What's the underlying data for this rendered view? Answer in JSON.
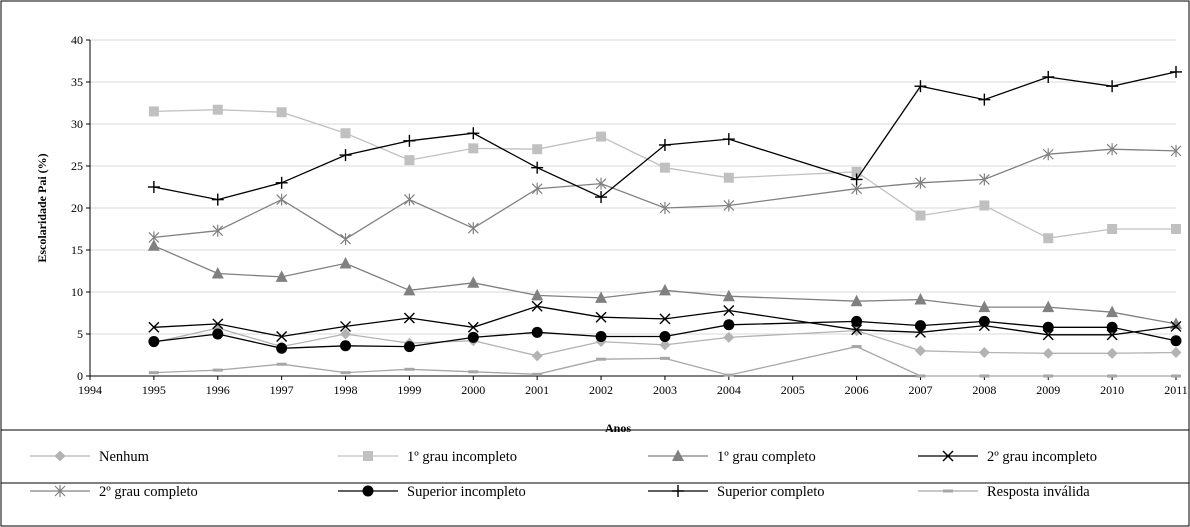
{
  "chart_data": {
    "type": "line",
    "xlabel": "Anos",
    "ylabel": "Escolaridade Pai (%)",
    "ylim": [
      0,
      40
    ],
    "yticks": [
      0,
      5,
      10,
      15,
      20,
      25,
      30,
      35,
      40
    ],
    "xlim": [
      1994,
      2011
    ],
    "xticks": [
      1994,
      1995,
      1996,
      1997,
      1998,
      1999,
      2000,
      2001,
      2002,
      2003,
      2004,
      2005,
      2006,
      2007,
      2008,
      2009,
      2010,
      2011
    ],
    "x": [
      1995,
      1996,
      1997,
      1998,
      1999,
      2000,
      2001,
      2002,
      2003,
      2004,
      2006,
      2007,
      2008,
      2009,
      2010,
      2011
    ],
    "grid": "horizontal",
    "legend_position": "bottom",
    "series": [
      {
        "name": "Nenhum",
        "marker": "diamond",
        "color": "#b3b3b3",
        "values": [
          4.0,
          5.7,
          3.5,
          5.0,
          3.9,
          4.2,
          2.4,
          4.1,
          3.7,
          4.6,
          5.4,
          3.0,
          2.8,
          2.7,
          2.7,
          2.8
        ]
      },
      {
        "name": "1º grau incompleto",
        "marker": "square",
        "color": "#c0c0c0",
        "values": [
          31.5,
          31.7,
          31.4,
          28.9,
          25.7,
          27.1,
          27.0,
          28.5,
          24.8,
          23.6,
          24.3,
          19.1,
          20.3,
          16.4,
          17.5,
          17.5
        ]
      },
      {
        "name": "1º grau completo",
        "marker": "triangle",
        "color": "#808080",
        "values": [
          15.5,
          12.2,
          11.8,
          13.4,
          10.2,
          11.1,
          9.6,
          9.3,
          10.2,
          9.5,
          8.9,
          9.1,
          8.2,
          8.2,
          7.6,
          6.2
        ]
      },
      {
        "name": "2º grau incompleto",
        "marker": "x",
        "color": "#000000",
        "values": [
          5.8,
          6.2,
          4.7,
          5.9,
          6.9,
          5.8,
          8.3,
          7.0,
          6.8,
          7.8,
          5.5,
          5.2,
          6.0,
          4.9,
          4.9,
          5.9
        ]
      },
      {
        "name": "2º grau completo",
        "marker": "star",
        "color": "#808080",
        "values": [
          16.5,
          17.3,
          21.0,
          16.3,
          21.0,
          17.6,
          22.3,
          22.9,
          20.0,
          20.3,
          22.3,
          23.0,
          23.4,
          26.4,
          27.0,
          26.8
        ]
      },
      {
        "name": "Superior incompleto",
        "marker": "circle",
        "color": "#000000",
        "values": [
          4.1,
          5.0,
          3.3,
          3.6,
          3.5,
          4.6,
          5.2,
          4.7,
          4.7,
          6.1,
          6.5,
          6.0,
          6.5,
          5.8,
          5.8,
          4.2
        ]
      },
      {
        "name": "Superior completo",
        "marker": "plus",
        "color": "#000000",
        "values": [
          22.5,
          21.0,
          23.0,
          26.3,
          28.0,
          28.9,
          24.8,
          21.3,
          27.5,
          28.2,
          23.4,
          34.5,
          32.9,
          35.6,
          34.5,
          36.2
        ]
      },
      {
        "name": "Resposta inválida",
        "marker": "dash",
        "color": "#a6a6a6",
        "values": [
          0.4,
          0.7,
          1.4,
          0.4,
          0.8,
          0.5,
          0.2,
          2.0,
          2.1,
          0.1,
          3.5,
          0.0,
          0.0,
          0.0,
          0.0,
          0.0
        ]
      }
    ]
  }
}
